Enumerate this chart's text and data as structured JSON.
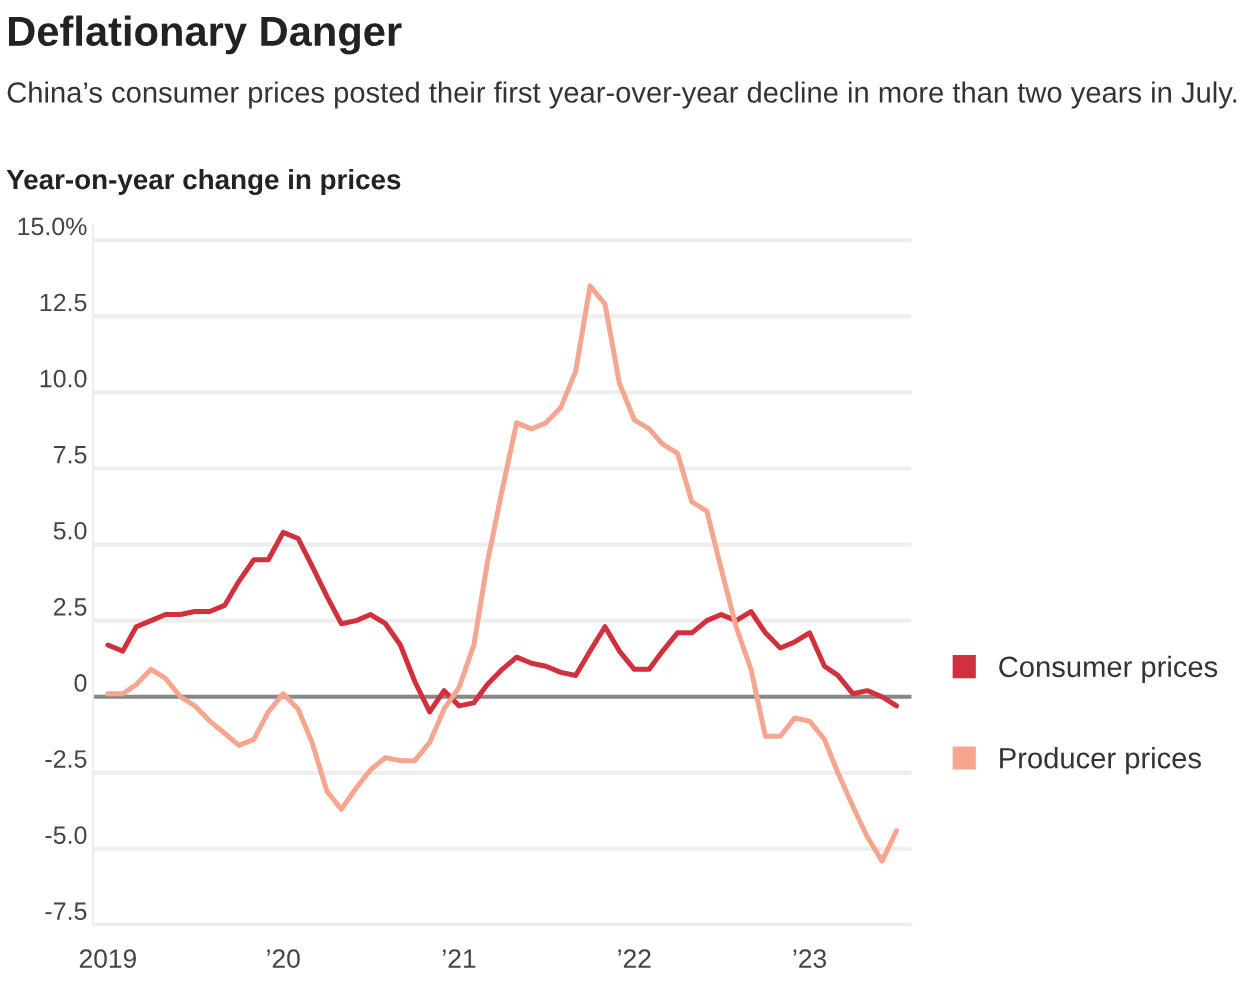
{
  "chart_data": {
    "type": "line",
    "title": "Deflationary Danger",
    "subtitle": "China’s consumer prices posted their first year-over-year decline in more than two years in July.",
    "ylabel": "Year-on-year change in prices",
    "x": [
      "2019-01",
      "2019-02",
      "2019-03",
      "2019-04",
      "2019-05",
      "2019-06",
      "2019-07",
      "2019-08",
      "2019-09",
      "2019-10",
      "2019-11",
      "2019-12",
      "2020-01",
      "2020-02",
      "2020-03",
      "2020-04",
      "2020-05",
      "2020-06",
      "2020-07",
      "2020-08",
      "2020-09",
      "2020-10",
      "2020-11",
      "2020-12",
      "2021-01",
      "2021-02",
      "2021-03",
      "2021-04",
      "2021-05",
      "2021-06",
      "2021-07",
      "2021-08",
      "2021-09",
      "2021-10",
      "2021-11",
      "2021-12",
      "2022-01",
      "2022-02",
      "2022-03",
      "2022-04",
      "2022-05",
      "2022-06",
      "2022-07",
      "2022-08",
      "2022-09",
      "2022-10",
      "2022-11",
      "2022-12",
      "2023-01",
      "2023-02",
      "2023-03",
      "2023-04",
      "2023-05",
      "2023-06",
      "2023-07"
    ],
    "series": [
      {
        "name": "Consumer prices",
        "color": "#d1303c",
        "values": [
          1.7,
          1.5,
          2.3,
          2.5,
          2.7,
          2.7,
          2.8,
          2.8,
          3.0,
          3.8,
          4.5,
          4.5,
          5.4,
          5.2,
          4.3,
          3.3,
          2.4,
          2.5,
          2.7,
          2.4,
          1.7,
          0.5,
          -0.5,
          0.2,
          -0.3,
          -0.2,
          0.4,
          0.9,
          1.3,
          1.1,
          1.0,
          0.8,
          0.7,
          1.5,
          2.3,
          1.5,
          0.9,
          0.9,
          1.5,
          2.1,
          2.1,
          2.5,
          2.7,
          2.5,
          2.8,
          2.1,
          1.6,
          1.8,
          2.1,
          1.0,
          0.7,
          0.1,
          0.2,
          0.0,
          -0.3
        ]
      },
      {
        "name": "Producer prices",
        "color": "#f6a58f",
        "values": [
          0.1,
          0.1,
          0.4,
          0.9,
          0.6,
          0.0,
          -0.3,
          -0.8,
          -1.2,
          -1.6,
          -1.4,
          -0.5,
          0.1,
          -0.4,
          -1.5,
          -3.1,
          -3.7,
          -3.0,
          -2.4,
          -2.0,
          -2.1,
          -2.1,
          -1.5,
          -0.4,
          0.3,
          1.7,
          4.4,
          6.8,
          9.0,
          8.8,
          9.0,
          9.5,
          10.7,
          13.5,
          12.9,
          10.3,
          9.1,
          8.8,
          8.3,
          8.0,
          6.4,
          6.1,
          4.2,
          2.3,
          0.9,
          -1.3,
          -1.3,
          -0.7,
          -0.8,
          -1.4,
          -2.5,
          -3.6,
          -4.6,
          -5.4,
          -4.4
        ]
      }
    ],
    "xlim": [
      "2018-12-01",
      "2023-08-01"
    ],
    "xticks": [
      {
        "value": "2019-01",
        "label": "2019"
      },
      {
        "value": "2020-01",
        "label": "’20"
      },
      {
        "value": "2021-01",
        "label": "’21"
      },
      {
        "value": "2022-01",
        "label": "’22"
      },
      {
        "value": "2023-01",
        "label": "’23"
      }
    ],
    "ylim": [
      -7.5,
      15.5
    ],
    "yticks": [
      {
        "value": -7.5,
        "label": "-7.5"
      },
      {
        "value": -5,
        "label": "-5.0"
      },
      {
        "value": -2.5,
        "label": "-2.5"
      },
      {
        "value": 0,
        "label": "0"
      },
      {
        "value": 2.5,
        "label": "2.5"
      },
      {
        "value": 5,
        "label": "5.0"
      },
      {
        "value": 7.5,
        "label": "7.5"
      },
      {
        "value": 10,
        "label": "10.0"
      },
      {
        "value": 12.5,
        "label": "12.5"
      },
      {
        "value": 15,
        "label": "15.0%"
      }
    ],
    "ref_lines": [
      {
        "axis": "y",
        "value": 0,
        "color": "#888888"
      }
    ],
    "grid": "y",
    "legend": "right",
    "marker": "none",
    "line_style": "solid"
  }
}
